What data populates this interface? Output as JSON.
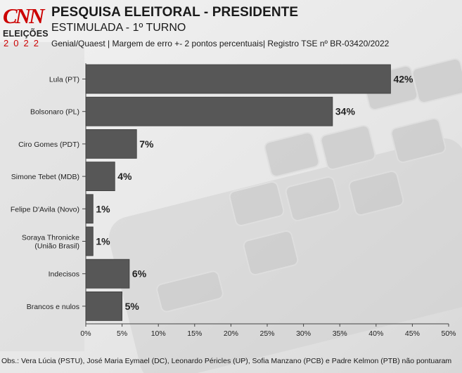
{
  "header": {
    "logo_text": "CNN",
    "logo_subtitle": "ELEIÇÕES",
    "logo_year": "2022",
    "title": "PESQUISA ELEITORAL - PRESIDENTE",
    "subtitle": "ESTIMULADA - 1º TURNO",
    "source": "Genial/Quaest | Margem de erro +- 2 pontos percentuais| Registro TSE nº BR-03420/2022"
  },
  "footnote": "Obs.: Vera Lúcia (PSTU), José Maria Eymael (DC), Leonardo Péricles (UP), Sofia Manzano (PCB) e Padre Kelmon (PTB) não pontuaram",
  "colors": {
    "bar": "#575757",
    "bar_stroke": "#3c3c3c",
    "logo_red": "#cc0000",
    "text": "#1a1a1a"
  },
  "chart_data": {
    "type": "bar",
    "orientation": "horizontal",
    "categories": [
      "Lula (PT)",
      "Bolsonaro (PL)",
      "Ciro Gomes (PDT)",
      "Simone Tebet (MDB)",
      "Felipe D'Avila (Novo)",
      "Soraya Thronicke (União Brasil)",
      "Indecisos",
      "Brancos e nulos"
    ],
    "values": [
      42,
      34,
      7,
      4,
      1,
      1,
      6,
      5
    ],
    "value_labels": [
      "42%",
      "34%",
      "7%",
      "4%",
      "1%",
      "1%",
      "6%",
      "5%"
    ],
    "x_ticks": [
      "0%",
      "5%",
      "10%",
      "15%",
      "20%",
      "25%",
      "30%",
      "35%",
      "40%",
      "45%",
      "50%"
    ],
    "xlim": [
      0,
      50
    ],
    "grid": false
  }
}
